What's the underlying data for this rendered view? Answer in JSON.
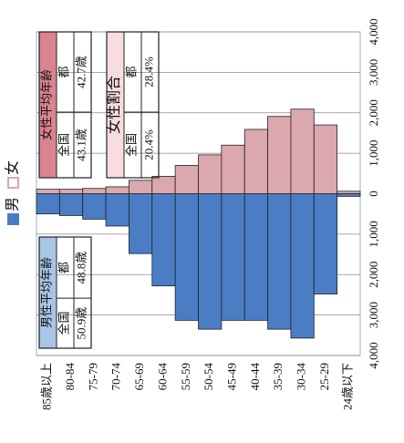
{
  "chart_data": {
    "type": "bar",
    "categories": [
      "85歳以上",
      "80-84",
      "75-79",
      "70-74",
      "65-69",
      "60-64",
      "55-59",
      "50-54",
      "45-49",
      "40-44",
      "35-39",
      "30-34",
      "25-29",
      "24歳以下"
    ],
    "series": [
      {
        "name": "男",
        "color": "#4a7dc4",
        "values": [
          -500,
          -540,
          -630,
          -800,
          -1480,
          -2280,
          -3130,
          -3350,
          -3130,
          -3130,
          -3350,
          -3570,
          -2480,
          -65
        ]
      },
      {
        "name": "女",
        "color": "#dba8ad",
        "values": [
          110,
          110,
          130,
          170,
          330,
          430,
          700,
          960,
          1200,
          1590,
          1910,
          2090,
          1700,
          60
        ]
      }
    ],
    "ylim": [
      -4000,
      4000
    ],
    "yticks": [
      {
        "value": -4000,
        "label": "4,000"
      },
      {
        "value": -3000,
        "label": "3,000"
      },
      {
        "value": -2000,
        "label": "2,000"
      },
      {
        "value": -1000,
        "label": "1,000"
      },
      0,
      {
        "value": 1000,
        "label": "1,000"
      },
      {
        "value": 2000,
        "label": "2,000"
      },
      {
        "value": 3000,
        "label": "3,000"
      },
      {
        "value": 4000,
        "label": "4,000"
      }
    ],
    "grid": true,
    "annotations": [
      {
        "title": "女性平均年齢",
        "headers": [
          "全国",
          "都"
        ],
        "cells": [
          "43.1歳",
          "42.7歳"
        ],
        "color": "#d9848e"
      },
      {
        "title": "女性割合",
        "headers": [
          "全国",
          "都"
        ],
        "cells": [
          "20.4%",
          "28.4%"
        ],
        "color": "#f7dde0"
      },
      {
        "title": "男性平均年齢",
        "headers": [
          "全国",
          "都"
        ],
        "cells": [
          "50.9歳",
          "48.8歳"
        ],
        "color": "#a9c5e6"
      }
    ]
  }
}
